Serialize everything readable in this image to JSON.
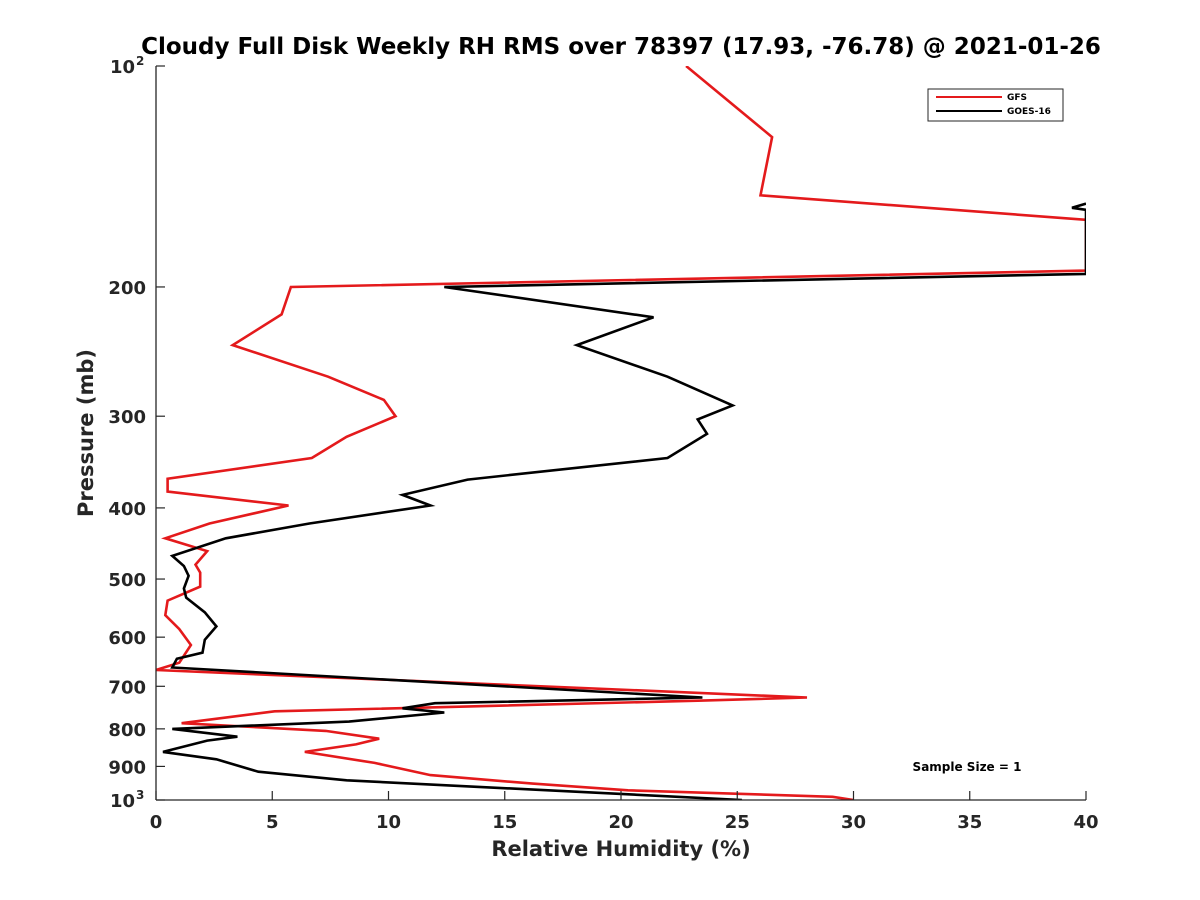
{
  "chart_data": {
    "type": "line",
    "title": "Cloudy Full Disk Weekly RH RMS over 78397 (17.93, -76.78) @ 2021-01-26",
    "xlabel": "Relative Humidity (%)",
    "ylabel": "Pressure (mb)",
    "xlim": [
      0,
      40
    ],
    "ylim": [
      100,
      1000
    ],
    "y_scale": "log",
    "y_reversed": true,
    "grid": false,
    "legend_position": "top-right",
    "x_ticks": [
      "0",
      "5",
      "10",
      "15",
      "20",
      "25",
      "30",
      "35",
      "40"
    ],
    "y_ticks": [
      {
        "value": 100,
        "label": "10",
        "sup": "2"
      },
      {
        "value": 200,
        "label": "200",
        "sup": ""
      },
      {
        "value": 300,
        "label": "300",
        "sup": ""
      },
      {
        "value": 400,
        "label": "400",
        "sup": ""
      },
      {
        "value": 500,
        "label": "500",
        "sup": ""
      },
      {
        "value": 600,
        "label": "600",
        "sup": ""
      },
      {
        "value": 700,
        "label": "700",
        "sup": ""
      },
      {
        "value": 800,
        "label": "800",
        "sup": ""
      },
      {
        "value": 900,
        "label": "900",
        "sup": ""
      },
      {
        "value": 1000,
        "label": "10",
        "sup": "3"
      }
    ],
    "annotation": "Sample Size = 1",
    "series": [
      {
        "name": "GFS",
        "color": "#e41a1c",
        "points": [
          [
            22.8,
            100
          ],
          [
            26.5,
            125
          ],
          [
            26.0,
            150
          ],
          [
            40.0,
            162
          ],
          [
            40.0,
            190
          ],
          [
            5.8,
            200
          ],
          [
            5.4,
            218
          ],
          [
            3.3,
            240
          ],
          [
            7.4,
            265
          ],
          [
            9.8,
            285
          ],
          [
            10.3,
            300
          ],
          [
            8.2,
            320
          ],
          [
            6.7,
            342
          ],
          [
            0.5,
            365
          ],
          [
            0.5,
            380
          ],
          [
            5.7,
            397
          ],
          [
            2.3,
            420
          ],
          [
            0.4,
            440
          ],
          [
            2.2,
            458
          ],
          [
            1.7,
            478
          ],
          [
            1.9,
            490
          ],
          [
            1.9,
            512
          ],
          [
            0.5,
            535
          ],
          [
            0.4,
            560
          ],
          [
            1.0,
            585
          ],
          [
            1.5,
            615
          ],
          [
            1.0,
            650
          ],
          [
            0.0,
            665
          ],
          [
            28.0,
            725
          ],
          [
            23.5,
            732
          ],
          [
            5.1,
            757
          ],
          [
            1.1,
            786
          ],
          [
            7.3,
            805
          ],
          [
            9.6,
            825
          ],
          [
            8.6,
            840
          ],
          [
            6.4,
            860
          ],
          [
            9.4,
            890
          ],
          [
            11.8,
            925
          ],
          [
            16.2,
            950
          ],
          [
            20.3,
            970
          ],
          [
            29.1,
            990
          ],
          [
            30.0,
            1000
          ]
        ]
      },
      {
        "name": "GOES-16",
        "color": "#000000",
        "points": [
          [
            40.0,
            154
          ],
          [
            39.4,
            156
          ],
          [
            40.0,
            157
          ],
          [
            40.0,
            192
          ],
          [
            12.4,
            200
          ],
          [
            21.4,
            220
          ],
          [
            18.1,
            240
          ],
          [
            22.0,
            265
          ],
          [
            24.8,
            290
          ],
          [
            23.3,
            303
          ],
          [
            23.7,
            317
          ],
          [
            22.0,
            342
          ],
          [
            13.4,
            366
          ],
          [
            10.6,
            384
          ],
          [
            11.8,
            397
          ],
          [
            6.6,
            420
          ],
          [
            3.0,
            440
          ],
          [
            0.7,
            465
          ],
          [
            1.2,
            480
          ],
          [
            1.4,
            495
          ],
          [
            1.2,
            515
          ],
          [
            1.3,
            530
          ],
          [
            2.1,
            555
          ],
          [
            2.6,
            580
          ],
          [
            2.1,
            605
          ],
          [
            2.0,
            630
          ],
          [
            0.9,
            642
          ],
          [
            0.7,
            660
          ],
          [
            23.5,
            725
          ],
          [
            12.0,
            738
          ],
          [
            10.6,
            750
          ],
          [
            12.4,
            760
          ],
          [
            8.3,
            782
          ],
          [
            0.7,
            800
          ],
          [
            3.5,
            820
          ],
          [
            2.2,
            830
          ],
          [
            0.3,
            860
          ],
          [
            2.6,
            880
          ],
          [
            4.4,
            915
          ],
          [
            8.2,
            940
          ],
          [
            25.2,
            1000
          ]
        ]
      }
    ]
  }
}
